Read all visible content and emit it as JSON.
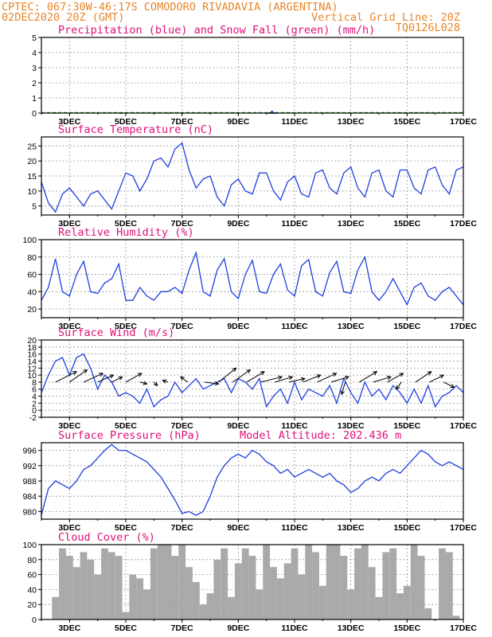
{
  "header": {
    "line1_left": "CPTEC:   067:30W-46:17S   COMODORO RIVADAVIA (ARGENTINA)",
    "line2_left": "02DEC2020 20Z (GMT)",
    "line2_right": "Vertical Grid Line: 20Z",
    "line3_right": "TQ0126L028"
  },
  "colors": {
    "header": "#e8862a",
    "title": "#e0107a",
    "line": "#1f3fe0",
    "snow": "#1aa01a",
    "cloud": "#a9a9a9"
  },
  "x_axis": {
    "ticks": [
      "3DEC",
      "5DEC",
      "7DEC",
      "9DEC",
      "11DEC",
      "13DEC",
      "15DEC",
      "17DEC"
    ],
    "range_days": [
      2.0,
      17.0
    ]
  },
  "chart_data": [
    {
      "id": "precip",
      "type": "bar",
      "title": "Precipitation (blue) and Snow Fall (green) (mm/h)",
      "ylim": [
        0,
        5
      ],
      "yticks": [
        0,
        1,
        2,
        3,
        4,
        5
      ],
      "grid": true,
      "series": [
        {
          "name": "blue",
          "x": [
            10.1,
            10.2,
            10.3
          ],
          "values": [
            0.05,
            0.15,
            0.05
          ]
        },
        {
          "name": "green",
          "x": [
            2.5,
            4.8,
            6.5
          ],
          "values": [
            0.02,
            0.03,
            0.02
          ]
        }
      ]
    },
    {
      "id": "temp",
      "type": "line",
      "title": "Surface Temperature (nC)",
      "ylim": [
        2,
        28
      ],
      "yticks": [
        5,
        10,
        15,
        20,
        25
      ],
      "grid": true,
      "x": [
        2.0,
        2.25,
        2.5,
        2.75,
        3.0,
        3.25,
        3.5,
        3.75,
        4.0,
        4.25,
        4.5,
        4.75,
        5.0,
        5.25,
        5.5,
        5.75,
        6.0,
        6.25,
        6.5,
        6.75,
        7.0,
        7.25,
        7.5,
        7.75,
        8.0,
        8.25,
        8.5,
        8.75,
        9.0,
        9.25,
        9.5,
        9.75,
        10.0,
        10.25,
        10.5,
        10.75,
        11.0,
        11.25,
        11.5,
        11.75,
        12.0,
        12.25,
        12.5,
        12.75,
        13.0,
        13.25,
        13.5,
        13.75,
        14.0,
        14.25,
        14.5,
        14.75,
        15.0,
        15.25,
        15.5,
        15.75,
        16.0,
        16.25,
        16.5,
        16.75,
        17.0
      ],
      "values": [
        13,
        6,
        3,
        9,
        11,
        8,
        5,
        9,
        10,
        7,
        4,
        10,
        16,
        15,
        10,
        14,
        20,
        21,
        18,
        24,
        26,
        17,
        11,
        14,
        15,
        8,
        5,
        12,
        14,
        10,
        9,
        16,
        16,
        10,
        7,
        13,
        15,
        9,
        8,
        16,
        17,
        11,
        9,
        16,
        18,
        11,
        8,
        16,
        17,
        10,
        8,
        17,
        17,
        11,
        9,
        17,
        18,
        12,
        9,
        17,
        18
      ]
    },
    {
      "id": "rh",
      "type": "line",
      "title": "Relative Humidity (%)",
      "ylim": [
        10,
        100
      ],
      "yticks": [
        20,
        40,
        60,
        80,
        100
      ],
      "grid": true,
      "x": [
        2.0,
        2.25,
        2.5,
        2.75,
        3.0,
        3.25,
        3.5,
        3.75,
        4.0,
        4.25,
        4.5,
        4.75,
        5.0,
        5.25,
        5.5,
        5.75,
        6.0,
        6.25,
        6.5,
        6.75,
        7.0,
        7.25,
        7.5,
        7.75,
        8.0,
        8.25,
        8.5,
        8.75,
        9.0,
        9.25,
        9.5,
        9.75,
        10.0,
        10.25,
        10.5,
        10.75,
        11.0,
        11.25,
        11.5,
        11.75,
        12.0,
        12.25,
        12.5,
        12.75,
        13.0,
        13.25,
        13.5,
        13.75,
        14.0,
        14.25,
        14.5,
        14.75,
        15.0,
        15.25,
        15.5,
        15.75,
        16.0,
        16.25,
        16.5,
        16.75,
        17.0
      ],
      "values": [
        30,
        45,
        78,
        40,
        35,
        60,
        75,
        40,
        38,
        50,
        55,
        72,
        30,
        30,
        45,
        35,
        30,
        40,
        40,
        45,
        38,
        65,
        85,
        40,
        35,
        65,
        78,
        40,
        32,
        60,
        76,
        40,
        38,
        60,
        72,
        42,
        35,
        70,
        77,
        40,
        35,
        62,
        75,
        40,
        38,
        65,
        80,
        40,
        30,
        40,
        55,
        40,
        25,
        45,
        50,
        35,
        30,
        40,
        45,
        35,
        25
      ]
    },
    {
      "id": "wind",
      "type": "line",
      "title": "Surface Wind (m/s)",
      "ylim": [
        -2,
        20
      ],
      "yticks": [
        -2,
        0,
        2,
        4,
        6,
        8,
        10,
        12,
        14,
        16,
        18,
        20
      ],
      "grid": true,
      "x": [
        2.0,
        2.25,
        2.5,
        2.75,
        3.0,
        3.25,
        3.5,
        3.75,
        4.0,
        4.25,
        4.5,
        4.75,
        5.0,
        5.25,
        5.5,
        5.75,
        6.0,
        6.25,
        6.5,
        6.75,
        7.0,
        7.25,
        7.5,
        7.75,
        8.0,
        8.25,
        8.5,
        8.75,
        9.0,
        9.25,
        9.5,
        9.75,
        10.0,
        10.25,
        10.5,
        10.75,
        11.0,
        11.25,
        11.5,
        11.75,
        12.0,
        12.25,
        12.5,
        12.75,
        13.0,
        13.25,
        13.5,
        13.75,
        14.0,
        14.25,
        14.5,
        14.75,
        15.0,
        15.25,
        15.5,
        15.75,
        16.0,
        16.25,
        16.5,
        16.75,
        17.0
      ],
      "values": [
        5,
        10,
        14,
        15,
        10,
        15,
        16,
        12,
        6,
        10,
        8,
        4,
        5,
        4,
        2,
        6,
        1,
        3,
        4,
        8,
        5,
        7,
        9,
        6,
        7,
        8,
        9,
        5,
        9,
        8,
        6,
        9,
        1,
        4,
        6,
        2,
        8,
        3,
        6,
        5,
        4,
        7,
        2,
        9,
        5,
        2,
        8,
        4,
        6,
        3,
        7,
        5,
        2,
        6,
        2,
        7,
        1,
        4,
        5,
        7,
        5
      ],
      "arrow_x": [
        2.5,
        3.0,
        3.5,
        4.0,
        4.5,
        5.0,
        5.5,
        6.0,
        6.5,
        7.2,
        7.8,
        8.3,
        8.8,
        9.3,
        9.8,
        10.3,
        10.8,
        11.3,
        11.8,
        12.3,
        12.8,
        13.3,
        13.8,
        14.3,
        14.8,
        15.3,
        15.8,
        16.3
      ],
      "arrow_u": [
        12,
        10,
        11,
        9,
        6,
        9,
        4,
        2,
        -3,
        -4,
        8,
        10,
        10,
        10,
        12,
        10,
        9,
        10,
        11,
        10,
        -2,
        10,
        10,
        9,
        -3,
        9,
        8,
        6
      ],
      "arrow_v": [
        6,
        7,
        5,
        4,
        3,
        5,
        -1,
        -2,
        1,
        3,
        -1,
        8,
        7,
        6,
        3,
        3,
        2,
        4,
        5,
        3,
        -7,
        6,
        3,
        5,
        -4,
        6,
        4,
        -3
      ]
    },
    {
      "id": "pres",
      "type": "line",
      "title": "Surface Pressure (hPa)",
      "subtitle": "Model Altitude: 202.436 m",
      "ylim": [
        978,
        998
      ],
      "yticks": [
        980,
        984,
        988,
        992,
        996
      ],
      "grid": true,
      "x": [
        2.0,
        2.25,
        2.5,
        2.75,
        3.0,
        3.25,
        3.5,
        3.75,
        4.0,
        4.25,
        4.5,
        4.75,
        5.0,
        5.25,
        5.5,
        5.75,
        6.0,
        6.25,
        6.5,
        6.75,
        7.0,
        7.25,
        7.5,
        7.75,
        8.0,
        8.25,
        8.5,
        8.75,
        9.0,
        9.25,
        9.5,
        9.75,
        10.0,
        10.25,
        10.5,
        10.75,
        11.0,
        11.25,
        11.5,
        11.75,
        12.0,
        12.25,
        12.5,
        12.75,
        13.0,
        13.25,
        13.5,
        13.75,
        14.0,
        14.25,
        14.5,
        14.75,
        15.0,
        15.25,
        15.5,
        15.75,
        16.0,
        16.25,
        16.5,
        16.75,
        17.0
      ],
      "values": [
        979,
        986,
        988,
        987,
        986,
        988,
        991,
        992,
        994,
        996,
        997.5,
        996,
        996,
        995,
        994,
        993,
        991,
        989,
        986,
        983,
        979.5,
        980,
        979,
        980,
        984,
        989,
        992,
        994,
        995,
        994,
        996,
        995,
        993,
        992,
        990,
        991,
        989,
        990,
        991,
        990,
        989,
        990,
        988,
        987,
        985,
        986,
        988,
        989,
        988,
        990,
        991,
        990,
        992,
        994,
        996,
        995,
        993,
        992,
        993,
        992,
        991
      ]
    },
    {
      "id": "cloud",
      "type": "bar",
      "title": "Cloud Cover (%)",
      "ylim": [
        0,
        100
      ],
      "yticks": [
        0,
        20,
        40,
        60,
        80,
        100
      ],
      "grid": true,
      "x": [
        2.0,
        2.25,
        2.5,
        2.75,
        3.0,
        3.25,
        3.5,
        3.75,
        4.0,
        4.25,
        4.5,
        4.75,
        5.0,
        5.25,
        5.5,
        5.75,
        6.0,
        6.25,
        6.5,
        6.75,
        7.0,
        7.25,
        7.5,
        7.75,
        8.0,
        8.25,
        8.5,
        8.75,
        9.0,
        9.25,
        9.5,
        9.75,
        10.0,
        10.25,
        10.5,
        10.75,
        11.0,
        11.25,
        11.5,
        11.75,
        12.0,
        12.25,
        12.5,
        12.75,
        13.0,
        13.25,
        13.5,
        13.75,
        14.0,
        14.25,
        14.5,
        14.75,
        15.0,
        15.25,
        15.5,
        15.75,
        16.0,
        16.25,
        16.5,
        16.75,
        17.0
      ],
      "values": [
        0,
        0,
        30,
        95,
        85,
        70,
        90,
        80,
        60,
        95,
        90,
        85,
        10,
        60,
        55,
        40,
        95,
        100,
        100,
        85,
        100,
        70,
        50,
        20,
        35,
        80,
        95,
        30,
        75,
        95,
        85,
        40,
        100,
        70,
        55,
        75,
        95,
        60,
        100,
        90,
        45,
        100,
        100,
        85,
        40,
        95,
        100,
        70,
        30,
        90,
        95,
        35,
        45,
        100,
        85,
        15,
        0,
        95,
        90,
        5,
        0
      ]
    }
  ]
}
